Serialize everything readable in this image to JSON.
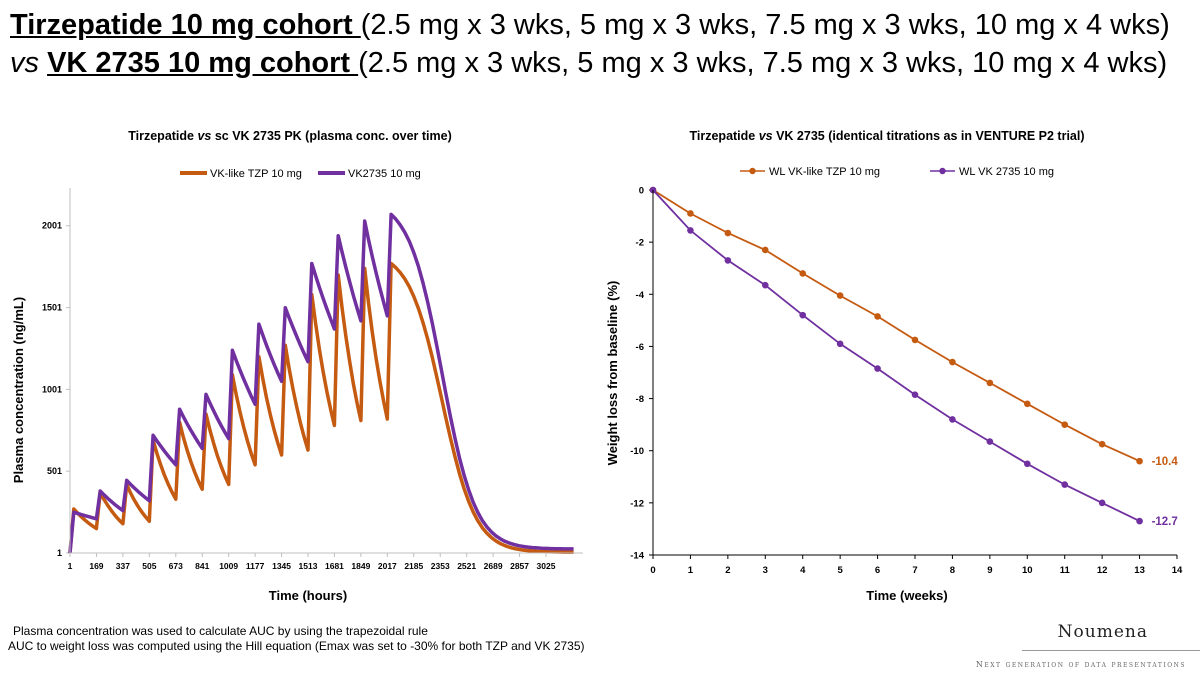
{
  "header": {
    "line1_bold": "Tirzepatide 10 mg cohort ",
    "line1_rest": "(2.5 mg x 3 wks, 5 mg x 3 wks, 7.5 mg x 3 wks, 10 mg x 4 wks)",
    "line2_vs": "vs ",
    "line2_bold": "VK 2735 10 mg cohort ",
    "line2_rest": "(2.5 mg x 3 wks, 5 mg x 3 wks, 7.5 mg x 3 wks, 10 mg x 4 wks)"
  },
  "chart_data": [
    {
      "type": "line",
      "title_pre": "Tirzepatide ",
      "title_vs": "vs",
      "title_post": " sc VK 2735 PK (plasma conc. over time)",
      "xlabel": "Time (hours)",
      "ylabel": "Plasma concentration (ng/mL)",
      "x_ticks": [
        1,
        169,
        337,
        505,
        673,
        841,
        1009,
        1177,
        1345,
        1513,
        1681,
        1849,
        2017,
        2185,
        2353,
        2521,
        2689,
        2857,
        3025
      ],
      "y_ticks": [
        1,
        501,
        1001,
        1501,
        2001
      ],
      "xlim": [
        1,
        3260
      ],
      "ylim": [
        1,
        2201
      ],
      "legend_position": "top",
      "series": [
        {
          "name": "VK-like TZP 10 mg",
          "color": "#C55A11",
          "weekly_peaks": [
            270,
            370,
            420,
            690,
            800,
            850,
            1090,
            1200,
            1270,
            1580,
            1700,
            1740,
            1770
          ],
          "weekly_troughs": [
            150,
            180,
            195,
            330,
            390,
            420,
            540,
            600,
            630,
            780,
            810,
            820
          ],
          "final_trough": 5
        },
        {
          "name": "VK2735 10 mg",
          "color": "#7030A0",
          "weekly_peaks": [
            250,
            380,
            445,
            720,
            880,
            970,
            1240,
            1400,
            1500,
            1770,
            1940,
            2030,
            2070
          ],
          "weekly_troughs": [
            210,
            260,
            320,
            540,
            640,
            700,
            910,
            1050,
            1170,
            1370,
            1420,
            1450
          ],
          "final_trough": 25
        }
      ]
    },
    {
      "type": "line",
      "title_pre": "Tirzepatide ",
      "title_vs": "vs",
      "title_post": " VK 2735 (identical titrations as in VENTURE P2 trial)",
      "xlabel": "Time (weeks)",
      "ylabel": "Weight loss from baseline (%)",
      "x_ticks": [
        0,
        1,
        2,
        3,
        4,
        5,
        6,
        7,
        8,
        9,
        10,
        11,
        12,
        13,
        14
      ],
      "y_ticks": [
        0,
        -2,
        -4,
        -6,
        -8,
        -10,
        -12,
        -14
      ],
      "xlim": [
        0,
        14
      ],
      "ylim": [
        -14,
        0
      ],
      "legend_position": "top",
      "x": [
        0,
        1,
        2,
        3,
        4,
        5,
        6,
        7,
        8,
        9,
        10,
        11,
        12,
        13
      ],
      "series": [
        {
          "name": "WL VK-like TZP 10 mg",
          "color": "#C55A11",
          "values": [
            0,
            -0.9,
            -1.65,
            -2.3,
            -3.2,
            -4.05,
            -4.85,
            -5.75,
            -6.6,
            -7.4,
            -8.2,
            -9.0,
            -9.75,
            -10.4
          ],
          "end_label": "-10.4"
        },
        {
          "name": "WL VK 2735 10 mg",
          "color": "#7030A0",
          "values": [
            0,
            -1.55,
            -2.7,
            -3.65,
            -4.8,
            -5.9,
            -6.85,
            -7.85,
            -8.8,
            -9.65,
            -10.5,
            -11.3,
            -12.0,
            -12.7
          ],
          "end_label": "-12.7"
        }
      ]
    }
  ],
  "footnotes": [
    "Plasma concentration was used to calculate AUC by using the trapezoidal rule",
    "AUC to weight loss was computed using the Hill equation (Emax was set to -30% for both TZP and VK 2735)"
  ],
  "brand": {
    "name": "Noumena",
    "tagline": "Next generation of data presentations"
  }
}
